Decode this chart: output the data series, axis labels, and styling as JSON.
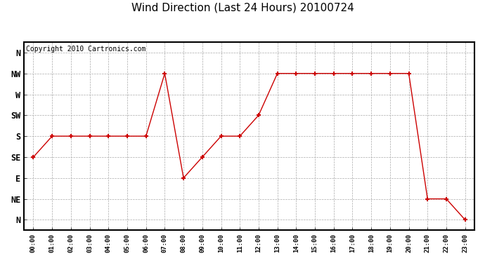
{
  "title": "Wind Direction (Last 24 Hours) 20100724",
  "copyright": "Copyright 2010 Cartronics.com",
  "hours": [
    0,
    1,
    2,
    3,
    4,
    5,
    6,
    7,
    8,
    9,
    10,
    11,
    12,
    13,
    14,
    15,
    16,
    17,
    18,
    19,
    20,
    21,
    22,
    23
  ],
  "wind_values": [
    6,
    5,
    5,
    5,
    5,
    5,
    5,
    2,
    7,
    6,
    5,
    5,
    4,
    2,
    2,
    2,
    2,
    2,
    2,
    2,
    2,
    8,
    8,
    9
  ],
  "ytick_positions": [
    1,
    2,
    3,
    4,
    5,
    6,
    7,
    8,
    9
  ],
  "ylabels": [
    "N",
    "NW",
    "W",
    "SW",
    "S",
    "SE",
    "E",
    "NE",
    "N"
  ],
  "ymin": 0.5,
  "ymax": 9.5,
  "line_color": "#cc0000",
  "marker": "+",
  "marker_size": 5,
  "marker_linewidth": 1.5,
  "bg_color": "#ffffff",
  "grid_color": "#aaaaaa",
  "title_fontsize": 11,
  "copyright_fontsize": 7
}
